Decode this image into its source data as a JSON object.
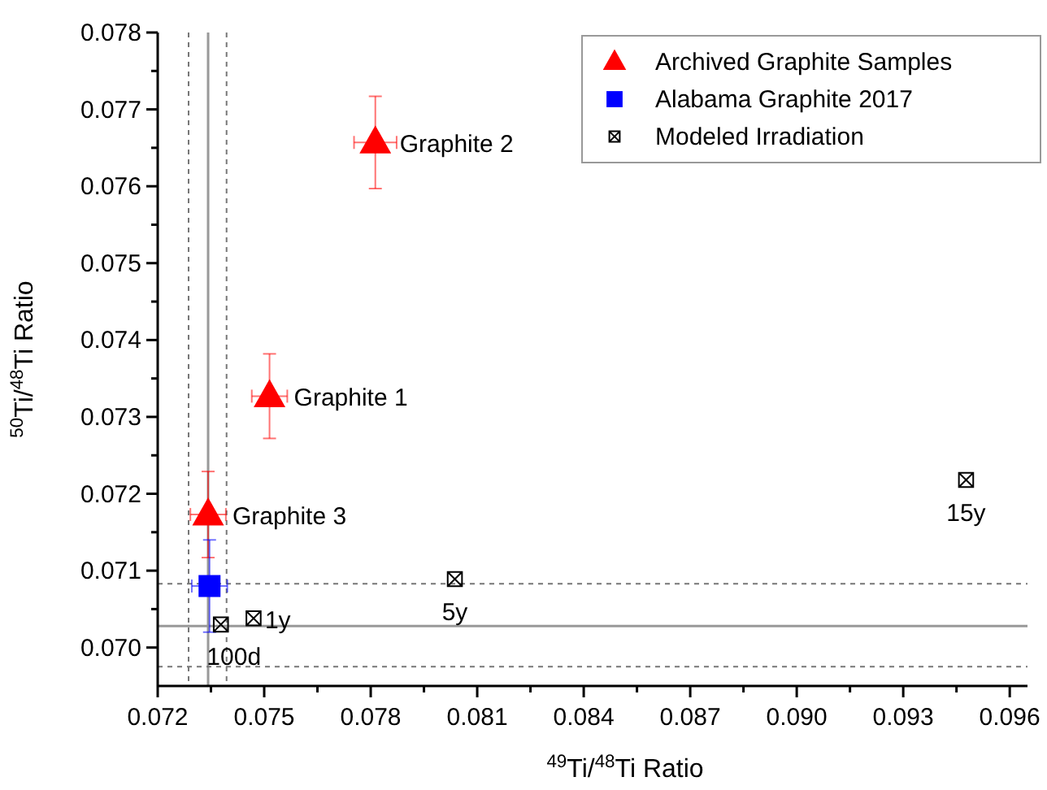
{
  "chart_data": {
    "type": "scatter",
    "xlabel": "$^{49}$Ti/$^{48}$Ti Ratio",
    "ylabel": "$^{50}$Ti/$^{48}$Ti Ratio",
    "xlim": [
      0.072,
      0.0965
    ],
    "ylim": [
      0.0695,
      0.078
    ],
    "xticks": [
      {
        "value": 0.072,
        "label": "0.072"
      },
      {
        "value": 0.0735,
        "label": null
      },
      {
        "value": 0.075,
        "label": "0.075"
      },
      {
        "value": 0.0765,
        "label": null
      },
      {
        "value": 0.078,
        "label": "0.078"
      },
      {
        "value": 0.0795,
        "label": null
      },
      {
        "value": 0.081,
        "label": "0.081"
      },
      {
        "value": 0.0825,
        "label": null
      },
      {
        "value": 0.084,
        "label": "0.084"
      },
      {
        "value": 0.0855,
        "label": null
      },
      {
        "value": 0.087,
        "label": "0.087"
      },
      {
        "value": 0.0885,
        "label": null
      },
      {
        "value": 0.09,
        "label": "0.090"
      },
      {
        "value": 0.0915,
        "label": null
      },
      {
        "value": 0.093,
        "label": "0.093"
      },
      {
        "value": 0.0945,
        "label": null
      },
      {
        "value": 0.096,
        "label": "0.096"
      }
    ],
    "yticks": [
      {
        "value": 0.07,
        "label": "0.070"
      },
      {
        "value": 0.0705,
        "label": null
      },
      {
        "value": 0.071,
        "label": "0.071"
      },
      {
        "value": 0.0715,
        "label": null
      },
      {
        "value": 0.072,
        "label": "0.072"
      },
      {
        "value": 0.0725,
        "label": null
      },
      {
        "value": 0.073,
        "label": "0.073"
      },
      {
        "value": 0.0735,
        "label": null
      },
      {
        "value": 0.074,
        "label": "0.074"
      },
      {
        "value": 0.0745,
        "label": null
      },
      {
        "value": 0.075,
        "label": "0.075"
      },
      {
        "value": 0.0755,
        "label": null
      },
      {
        "value": 0.076,
        "label": "0.076"
      },
      {
        "value": 0.0765,
        "label": null
      },
      {
        "value": 0.077,
        "label": "0.077"
      },
      {
        "value": 0.0775,
        "label": null
      },
      {
        "value": 0.078,
        "label": "0.078"
      }
    ],
    "legend": "top right",
    "grid": false,
    "series": [
      {
        "name": "Archived Graphite Samples",
        "color": "#ff0000",
        "marker": "triangle",
        "x": [
          0.07813,
          0.07515,
          0.07342
        ],
        "values": [
          0.07657,
          0.07327,
          0.07173
        ],
        "errors": [
          0.0006,
          0.00055,
          0.00056
        ],
        "xerrors": [
          0.0006,
          0.0005,
          0.0005
        ]
      },
      {
        "name": "Alabama Graphite 2017",
        "color": "#0000ff",
        "marker": "square",
        "x": [
          0.07346
        ],
        "values": [
          0.0708
        ],
        "errors": [
          0.0006
        ],
        "xerrors": [
          0.0005
        ]
      },
      {
        "name": "Modeled Irradiation",
        "color": "#000000",
        "marker": "cross",
        "x": [
          0.07378,
          0.0747,
          0.08037,
          0.09477
        ],
        "values": [
          0.0703,
          0.07038,
          0.07089,
          0.07218
        ]
      }
    ],
    "ref_lines": [
      {
        "axis": "x",
        "value": 0.07342,
        "color": "#999999",
        "line_style": "solid"
      },
      {
        "axis": "x",
        "value": 0.07287,
        "color": "#777777",
        "line_style": "dashed"
      },
      {
        "axis": "x",
        "value": 0.07394,
        "color": "#777777",
        "line_style": "dashed"
      },
      {
        "axis": "y",
        "value": 0.07028,
        "color": "#999999",
        "line_style": "solid"
      },
      {
        "axis": "y",
        "value": 0.07083,
        "color": "#777777",
        "line_style": "dashed"
      },
      {
        "axis": "y",
        "value": 0.06975,
        "color": "#777777",
        "line_style": "dashed"
      }
    ],
    "annotations": [
      {
        "text": "Graphite 2",
        "x": 0.07813,
        "y": 0.07657
      },
      {
        "text": "Graphite 1",
        "x": 0.07515,
        "y": 0.07327
      },
      {
        "text": "Graphite 3",
        "x": 0.07342,
        "y": 0.07173
      },
      {
        "text": "100d",
        "x": 0.07378,
        "y": 0.0703
      },
      {
        "text": "1y",
        "x": 0.0747,
        "y": 0.07038
      },
      {
        "text": "5y",
        "x": 0.08037,
        "y": 0.07089
      },
      {
        "text": "15y",
        "x": 0.09477,
        "y": 0.07218
      }
    ]
  }
}
